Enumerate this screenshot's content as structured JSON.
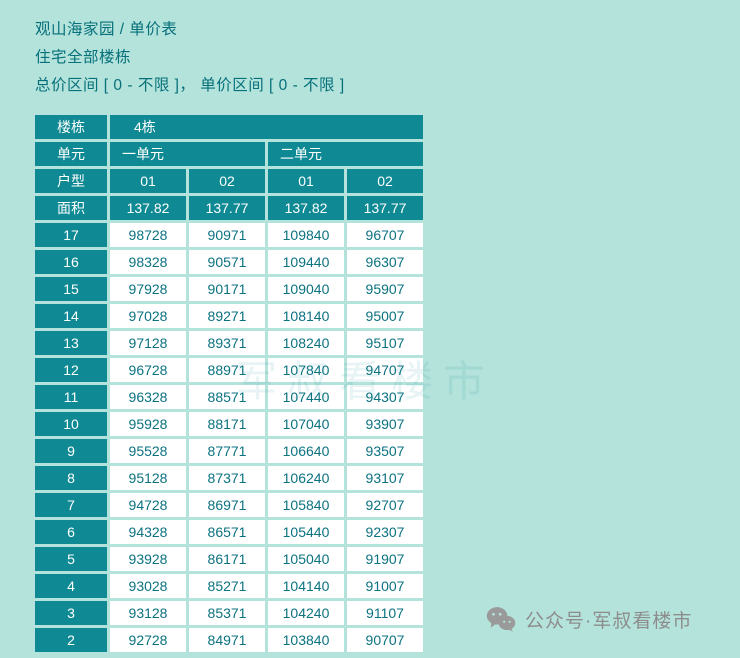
{
  "header": {
    "title": "观山海家园 / 单价表",
    "subtitle": "住宅全部楼栋",
    "filter": "总价区间 [ 0 - 不限 ]， 单价区间 [ 0 - 不限 ]"
  },
  "watermark": "军叔看楼市",
  "table": {
    "building_label": "楼栋",
    "building_value": "4栋",
    "unit_label": "单元",
    "units": [
      "一单元",
      "二单元"
    ],
    "type_label": "户型",
    "types": [
      "01",
      "02",
      "01",
      "02"
    ],
    "area_label": "面积",
    "areas": [
      "137.82",
      "137.77",
      "137.82",
      "137.77"
    ],
    "floors": [
      {
        "floor": "17",
        "prices": [
          "98728",
          "90971",
          "109840",
          "96707"
        ]
      },
      {
        "floor": "16",
        "prices": [
          "98328",
          "90571",
          "109440",
          "96307"
        ]
      },
      {
        "floor": "15",
        "prices": [
          "97928",
          "90171",
          "109040",
          "95907"
        ]
      },
      {
        "floor": "14",
        "prices": [
          "97028",
          "89271",
          "108140",
          "95007"
        ]
      },
      {
        "floor": "13",
        "prices": [
          "97128",
          "89371",
          "108240",
          "95107"
        ]
      },
      {
        "floor": "12",
        "prices": [
          "96728",
          "88971",
          "107840",
          "94707"
        ]
      },
      {
        "floor": "11",
        "prices": [
          "96328",
          "88571",
          "107440",
          "94307"
        ]
      },
      {
        "floor": "10",
        "prices": [
          "95928",
          "88171",
          "107040",
          "93907"
        ]
      },
      {
        "floor": "9",
        "prices": [
          "95528",
          "87771",
          "106640",
          "93507"
        ]
      },
      {
        "floor": "8",
        "prices": [
          "95128",
          "87371",
          "106240",
          "93107"
        ]
      },
      {
        "floor": "7",
        "prices": [
          "94728",
          "86971",
          "105840",
          "92707"
        ]
      },
      {
        "floor": "6",
        "prices": [
          "94328",
          "86571",
          "105440",
          "92307"
        ]
      },
      {
        "floor": "5",
        "prices": [
          "93928",
          "86171",
          "105040",
          "91907"
        ]
      },
      {
        "floor": "4",
        "prices": [
          "93028",
          "85271",
          "104140",
          "91007"
        ]
      },
      {
        "floor": "3",
        "prices": [
          "93128",
          "85371",
          "104240",
          "91107"
        ]
      },
      {
        "floor": "2",
        "prices": [
          "92728",
          "84971",
          "103840",
          "90707"
        ]
      }
    ]
  },
  "footer": {
    "wechat_label": "公众号·军叔看楼市"
  },
  "colors": {
    "background": "#b4e3db",
    "header_cell": "#0f8a94",
    "data_text": "#0b7280",
    "footer_gray": "#8d8d8d"
  }
}
